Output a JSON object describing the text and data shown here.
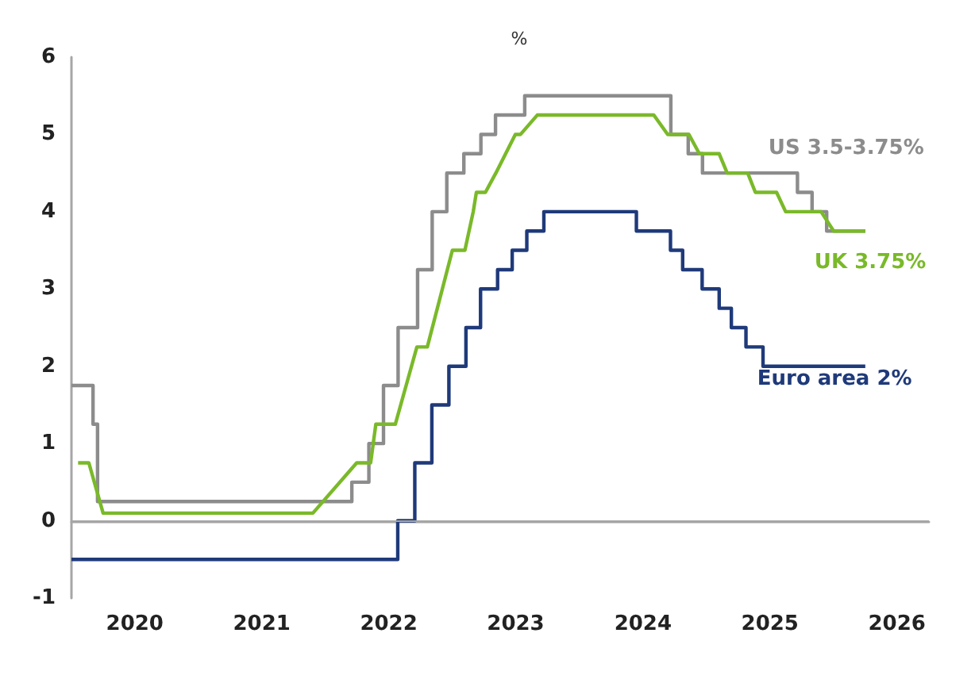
{
  "chart_data": {
    "type": "line",
    "title": "%",
    "xlim": [
      "2020-01-01",
      "2026-10-01"
    ],
    "xticks": [
      {
        "value": "2020-07-01",
        "label": "2020"
      },
      {
        "value": "2021-07-01",
        "label": "2021"
      },
      {
        "value": "2022-07-01",
        "label": "2022"
      },
      {
        "value": "2023-07-01",
        "label": "2023"
      },
      {
        "value": "2024-07-01",
        "label": "2024"
      },
      {
        "value": "2025-07-01",
        "label": "2025"
      },
      {
        "value": "2026-07-01",
        "label": "2026"
      }
    ],
    "ylim": [
      -1,
      6
    ],
    "yticks": [
      -1,
      0,
      1,
      2,
      3,
      4,
      5,
      6
    ],
    "grid": false,
    "legend": false,
    "marker": "none",
    "line_style": "solid",
    "ref_lines": [
      {
        "axis": "y",
        "value": 0,
        "color": "#a6a6a6"
      }
    ],
    "series": [
      {
        "name": "US 3.5-3.75%",
        "type": "step",
        "color": "#8c8c8c",
        "x": [
          "2020-01-01",
          "2020-03-03",
          "2020-03-16",
          "2022-03-17",
          "2022-05-05",
          "2022-06-16",
          "2022-07-28",
          "2022-09-22",
          "2022-11-03",
          "2022-12-15",
          "2023-02-02",
          "2023-03-23",
          "2023-05-04",
          "2023-07-27",
          "2024-09-19",
          "2024-11-08",
          "2024-12-19",
          "2025-09-18",
          "2025-10-30",
          "2025-12-11",
          "2026-04-01"
        ],
        "values": [
          1.75,
          1.25,
          0.25,
          0.5,
          1.0,
          1.75,
          2.5,
          3.25,
          4.0,
          4.5,
          4.75,
          5.0,
          5.25,
          5.5,
          5.0,
          4.75,
          4.5,
          4.25,
          4.0,
          3.75,
          3.75
        ]
      },
      {
        "name": "UK 3.75%",
        "color": "#7ab929",
        "x": [
          "2020-01-20",
          "2020-02-20",
          "2020-04-01",
          "2021-11-25",
          "2022-03-31",
          "2022-05-10",
          "2022-05-25",
          "2022-07-20",
          "2022-09-20",
          "2022-10-20",
          "2022-12-31",
          "2023-02-05",
          "2023-03-01",
          "2023-03-10",
          "2023-04-05",
          "2023-05-05",
          "2023-06-30",
          "2023-07-15",
          "2023-09-01",
          "2024-08-01",
          "2024-09-10",
          "2024-11-10",
          "2024-12-10",
          "2025-02-05",
          "2025-02-28",
          "2025-04-28",
          "2025-05-20",
          "2025-07-20",
          "2025-08-15",
          "2025-11-25",
          "2025-12-31",
          "2026-04-01"
        ],
        "values": [
          0.75,
          0.75,
          0.1,
          0.1,
          0.75,
          0.75,
          1.25,
          1.25,
          2.25,
          2.25,
          3.5,
          3.5,
          4.0,
          4.25,
          4.25,
          4.5,
          5.0,
          5.0,
          5.25,
          5.25,
          5.0,
          5.0,
          4.75,
          4.75,
          4.5,
          4.5,
          4.25,
          4.25,
          4.0,
          4.0,
          3.75,
          3.75
        ]
      },
      {
        "name": "Euro area 2%",
        "type": "step",
        "color": "#1f3a7a",
        "x": [
          "2020-01-01",
          "2022-07-27",
          "2022-09-14",
          "2022-11-02",
          "2022-12-21",
          "2023-02-08",
          "2023-03-22",
          "2023-05-10",
          "2023-06-21",
          "2023-08-02",
          "2023-09-20",
          "2024-06-12",
          "2024-09-18",
          "2024-10-23",
          "2024-12-18",
          "2025-02-05",
          "2025-03-12",
          "2025-04-23",
          "2025-06-11",
          "2026-04-01"
        ],
        "values": [
          -0.5,
          0,
          0.75,
          1.5,
          2.0,
          2.5,
          3.0,
          3.25,
          3.5,
          3.75,
          4.0,
          3.75,
          3.5,
          3.25,
          3.0,
          2.75,
          2.5,
          2.25,
          2.0,
          2.0
        ]
      }
    ]
  }
}
